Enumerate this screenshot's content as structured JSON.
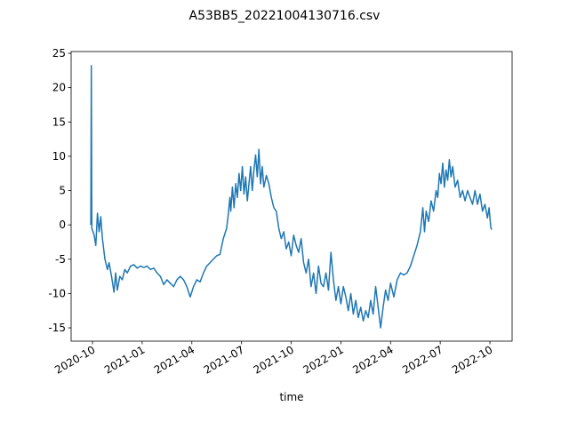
{
  "chart_data": {
    "type": "line",
    "title": "A53BB5_20221004130716.csv",
    "x_label": "time",
    "x": [
      -0.1,
      -0.07,
      -0.04,
      0.1,
      0.2,
      0.3,
      0.4,
      0.5,
      0.6,
      0.75,
      0.9,
      1.0,
      1.15,
      1.3,
      1.4,
      1.5,
      1.65,
      1.8,
      1.95,
      2.1,
      2.3,
      2.5,
      2.7,
      2.9,
      3.1,
      3.3,
      3.5,
      3.7,
      3.9,
      4.1,
      4.3,
      4.5,
      4.7,
      4.9,
      5.1,
      5.3,
      5.5,
      5.7,
      5.9,
      6.1,
      6.3,
      6.5,
      6.7,
      6.9,
      7.1,
      7.3,
      7.5,
      7.7,
      7.9,
      8.1,
      8.2,
      8.3,
      8.35,
      8.45,
      8.55,
      8.65,
      8.75,
      8.85,
      8.95,
      9.05,
      9.15,
      9.25,
      9.35,
      9.45,
      9.55,
      9.65,
      9.75,
      9.85,
      9.95,
      10.05,
      10.15,
      10.25,
      10.35,
      10.5,
      10.65,
      10.8,
      10.95,
      11.1,
      11.25,
      11.4,
      11.55,
      11.7,
      11.85,
      12.0,
      12.15,
      12.3,
      12.45,
      12.6,
      12.75,
      12.9,
      13.05,
      13.2,
      13.35,
      13.5,
      13.65,
      13.8,
      13.95,
      14.1,
      14.25,
      14.4,
      14.55,
      14.7,
      14.85,
      15.0,
      15.15,
      15.3,
      15.45,
      15.6,
      15.75,
      15.9,
      16.05,
      16.2,
      16.35,
      16.5,
      16.65,
      16.8,
      16.95,
      17.1,
      17.25,
      17.4,
      17.55,
      17.7,
      17.85,
      18.0,
      18.2,
      18.4,
      18.6,
      18.8,
      19.0,
      19.2,
      19.4,
      19.6,
      19.8,
      19.95,
      20.05,
      20.15,
      20.3,
      20.45,
      20.6,
      20.75,
      20.85,
      20.95,
      21.05,
      21.15,
      21.25,
      21.35,
      21.45,
      21.55,
      21.65,
      21.75,
      21.9,
      22.05,
      22.2,
      22.35,
      22.5,
      22.65,
      22.8,
      22.95,
      23.1,
      23.25,
      23.4,
      23.55,
      23.7,
      23.85,
      23.95,
      24.05,
      24.1
    ],
    "series": [
      {
        "color": "#1f77b4",
        "values": [
          0,
          23.2,
          -0.5,
          -1.5,
          -3,
          1.7,
          -1,
          1.2,
          -2,
          -5,
          -6.5,
          -5.5,
          -7.5,
          -9.8,
          -7,
          -9.5,
          -7.5,
          -8,
          -6.5,
          -7,
          -6,
          -5.8,
          -6.3,
          -6,
          -6.2,
          -6,
          -6.5,
          -6.3,
          -7,
          -7.5,
          -8.7,
          -8,
          -8.5,
          -9,
          -8,
          -7.5,
          -8,
          -9,
          -10.5,
          -9,
          -8,
          -8.3,
          -7,
          -6,
          -5.5,
          -5,
          -4.5,
          -4.3,
          -2,
          -0.5,
          1.5,
          4,
          2,
          5.5,
          2.5,
          6,
          4,
          7.5,
          5,
          8.5,
          4.5,
          7,
          3.5,
          6,
          8.5,
          5,
          8,
          10.2,
          7,
          11,
          6,
          8.5,
          5.5,
          7.2,
          6,
          4,
          2.5,
          2,
          -0.5,
          -2,
          -1,
          -3.5,
          -2.5,
          -4.5,
          -1.5,
          -3,
          -4,
          -2,
          -5.5,
          -7,
          -5,
          -9,
          -7,
          -10,
          -6,
          -8.5,
          -9,
          -7,
          -9.5,
          -4,
          -8,
          -11,
          -9,
          -11.5,
          -9,
          -10.5,
          -12.5,
          -10,
          -13,
          -11,
          -13.5,
          -12,
          -14,
          -12.5,
          -13.5,
          -11,
          -13,
          -9,
          -12,
          -15,
          -12,
          -9.5,
          -11,
          -8.5,
          -10.5,
          -8,
          -7,
          -7.3,
          -7,
          -6,
          -4.5,
          -3,
          -1,
          2.5,
          -1,
          2,
          0.5,
          3.5,
          2,
          5,
          4,
          7.5,
          6,
          9,
          5.5,
          8,
          6.5,
          9.5,
          7,
          8.5,
          5.5,
          6.5,
          4,
          5,
          3.5,
          5,
          4,
          3,
          5,
          3,
          4.5,
          2,
          3,
          1,
          2.5,
          -0.3,
          -0.7
        ]
      }
    ],
    "xlim": [
      -1.29,
      25.34
    ],
    "xticks": [
      {
        "value": 0,
        "label": "2020-10"
      },
      {
        "value": 3,
        "label": "2021-01"
      },
      {
        "value": 6,
        "label": "2021-04"
      },
      {
        "value": 9,
        "label": "2021-07"
      },
      {
        "value": 12,
        "label": "2021-10"
      },
      {
        "value": 15,
        "label": "2022-01"
      },
      {
        "value": 18,
        "label": "2022-04"
      },
      {
        "value": 21,
        "label": "2022-07"
      },
      {
        "value": 24,
        "label": "2022-10"
      }
    ],
    "ylim": [
      -16.94,
      25.26
    ],
    "yticks": [
      -15,
      -10,
      -5,
      0,
      5,
      10,
      15,
      20,
      25
    ]
  }
}
